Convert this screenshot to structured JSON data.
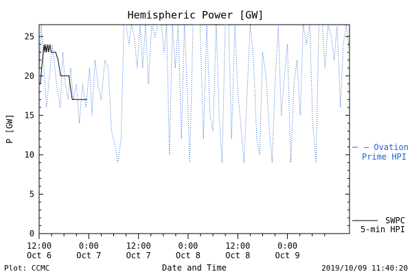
{
  "chart_data": {
    "type": "line",
    "title": "Hemispheric Power [GW]",
    "ylabel": "P [GW]",
    "xlabel": "Date and Time",
    "ylim": [
      0,
      26.5
    ],
    "yticks": [
      0,
      5,
      10,
      15,
      20,
      25
    ],
    "x_unit": "hours since 2019-10-06 12:00 UT",
    "xlim": [
      0,
      75
    ],
    "xticks": [
      {
        "x": 0,
        "time": "12:00",
        "date": "Oct 6"
      },
      {
        "x": 12,
        "time": "0:00",
        "date": "Oct 7"
      },
      {
        "x": 24,
        "time": "12:00",
        "date": "Oct 7"
      },
      {
        "x": 36,
        "time": "0:00",
        "date": "Oct 8"
      },
      {
        "x": 48,
        "time": "12:00",
        "date": "Oct 8"
      },
      {
        "x": 60,
        "time": "0:00",
        "date": "Oct 9"
      }
    ],
    "series": [
      {
        "name": "SWPC 5-min HPI",
        "color": "#000000",
        "style": "solid",
        "points": [
          [
            0,
            19
          ],
          [
            0.3,
            19
          ],
          [
            0.6,
            21
          ],
          [
            1,
            23
          ],
          [
            1.2,
            24
          ],
          [
            1.4,
            23
          ],
          [
            1.6,
            24
          ],
          [
            1.8,
            23
          ],
          [
            2.1,
            24
          ],
          [
            2.3,
            23
          ],
          [
            2.6,
            24
          ],
          [
            2.9,
            23
          ],
          [
            3.3,
            23
          ],
          [
            4,
            23
          ],
          [
            4.6,
            22
          ],
          [
            5.2,
            20
          ],
          [
            6.1,
            20
          ],
          [
            7.2,
            20
          ],
          [
            8,
            17
          ],
          [
            9.5,
            17
          ],
          [
            11.6,
            17
          ]
        ]
      },
      {
        "name": "Ovation Prime HPI",
        "color": "#1f5fd6",
        "style": "dotted",
        "points": [
          [
            0,
            20
          ],
          [
            0.5,
            26.5
          ],
          [
            1,
            22
          ],
          [
            1.8,
            16
          ],
          [
            2.5,
            20
          ],
          [
            3.2,
            24
          ],
          [
            4.2,
            19
          ],
          [
            5.1,
            16
          ],
          [
            5.7,
            23
          ],
          [
            6.3,
            19
          ],
          [
            7,
            17
          ],
          [
            7.6,
            21
          ],
          [
            8.3,
            17
          ],
          [
            9,
            19
          ],
          [
            9.7,
            14
          ],
          [
            10.5,
            19
          ],
          [
            11.3,
            16
          ],
          [
            12.2,
            21
          ],
          [
            12.8,
            15
          ],
          [
            13.5,
            22
          ],
          [
            14.2,
            19
          ],
          [
            15,
            17
          ],
          [
            15.9,
            22
          ],
          [
            16.7,
            21
          ],
          [
            17.5,
            13
          ],
          [
            18.4,
            11
          ],
          [
            19,
            9
          ],
          [
            19.8,
            12
          ],
          [
            20.5,
            26.5
          ],
          [
            21,
            26.5
          ],
          [
            21.7,
            24
          ],
          [
            22.3,
            26.5
          ],
          [
            23,
            25
          ],
          [
            23.7,
            21
          ],
          [
            24.4,
            26.5
          ],
          [
            25,
            21
          ],
          [
            25.7,
            26.5
          ],
          [
            26.4,
            19
          ],
          [
            27.2,
            26.5
          ],
          [
            28,
            25
          ],
          [
            28.7,
            26.5
          ],
          [
            29.5,
            26.5
          ],
          [
            30.2,
            23
          ],
          [
            30.8,
            26.5
          ],
          [
            31.5,
            10
          ],
          [
            32.2,
            26.5
          ],
          [
            32.9,
            21
          ],
          [
            33.6,
            26.5
          ],
          [
            34.4,
            12
          ],
          [
            35.1,
            26.5
          ],
          [
            35.8,
            18
          ],
          [
            36.4,
            9
          ],
          [
            37.2,
            26.5
          ],
          [
            38,
            26.5
          ],
          [
            38.9,
            26.5
          ],
          [
            39.7,
            12
          ],
          [
            40.5,
            26.5
          ],
          [
            41.3,
            15
          ],
          [
            42,
            13
          ],
          [
            42.8,
            26.5
          ],
          [
            43.5,
            15
          ],
          [
            44.2,
            9
          ],
          [
            45,
            26.5
          ],
          [
            45.8,
            26.5
          ],
          [
            46.5,
            12
          ],
          [
            47.3,
            26.5
          ],
          [
            48,
            18
          ],
          [
            48.7,
            14
          ],
          [
            49.5,
            9
          ],
          [
            50.2,
            17
          ],
          [
            51,
            26.5
          ],
          [
            51.8,
            22
          ],
          [
            52.6,
            12
          ],
          [
            53.3,
            10
          ],
          [
            54,
            23
          ],
          [
            54.8,
            20
          ],
          [
            55.5,
            14
          ],
          [
            56.3,
            9
          ],
          [
            57,
            19
          ],
          [
            57.8,
            26.5
          ],
          [
            58.5,
            15
          ],
          [
            59.3,
            20
          ],
          [
            60,
            24
          ],
          [
            60.8,
            9
          ],
          [
            61.6,
            19
          ],
          [
            62.3,
            22
          ],
          [
            63.1,
            15
          ],
          [
            63.8,
            26.5
          ],
          [
            64.6,
            24
          ],
          [
            65.4,
            26.5
          ],
          [
            66.1,
            14
          ],
          [
            66.9,
            9
          ],
          [
            67.6,
            26.5
          ],
          [
            68.4,
            26.5
          ],
          [
            69.1,
            21
          ],
          [
            69.8,
            26.5
          ],
          [
            70.6,
            25
          ],
          [
            71.3,
            22
          ],
          [
            72,
            26.5
          ],
          [
            72.8,
            16
          ],
          [
            73.5,
            24
          ],
          [
            74.2,
            26.5
          ],
          [
            75,
            23
          ]
        ]
      }
    ],
    "legend_placement": "right"
  },
  "legend": {
    "ovation_line1": "— Ovation",
    "ovation_line2": "Prime HPI",
    "swpc_line1": "SWPC",
    "swpc_line2": "5-min HPI"
  },
  "footer": {
    "plot_credit": "Plot: CCMC",
    "timestamp": "2019/10/09 11:40:20"
  }
}
